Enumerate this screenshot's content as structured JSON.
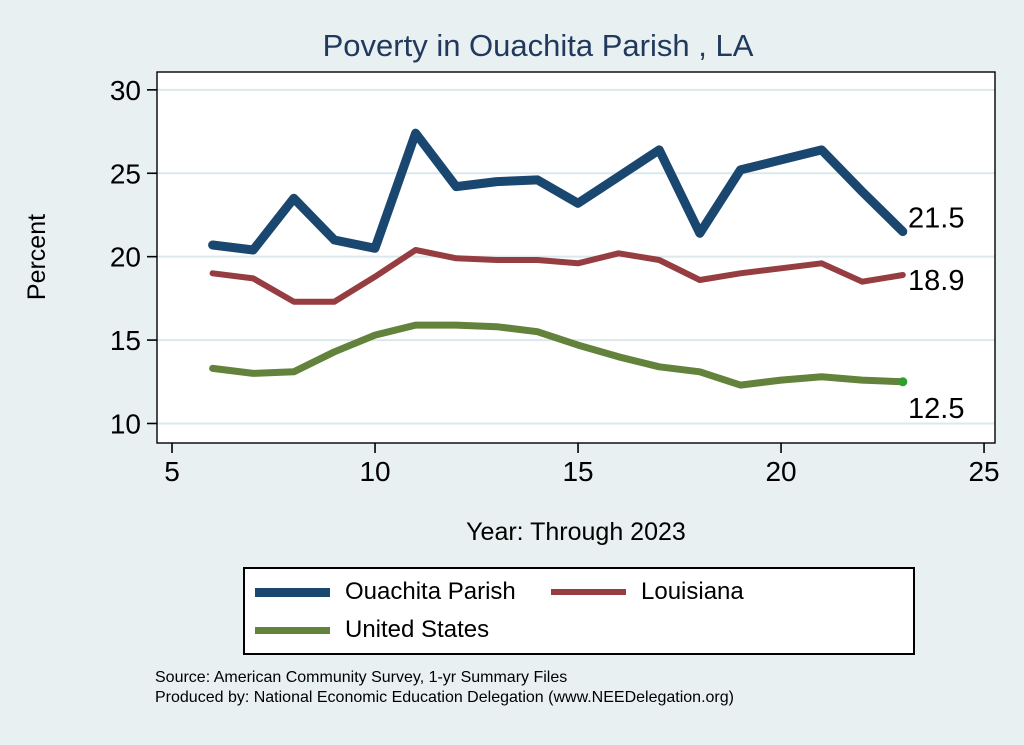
{
  "chart_data": {
    "type": "line",
    "title": "Poverty in Ouachita Parish , LA",
    "xlabel": "Year: Through 2023",
    "ylabel": "Percent",
    "x": [
      6,
      7,
      8,
      9,
      10,
      11,
      12,
      13,
      14,
      15,
      16,
      17,
      18,
      19,
      20,
      21,
      22,
      23
    ],
    "series": [
      {
        "name": "Ouachita Parish",
        "color": "#1a476f",
        "line_width": 9,
        "values": [
          20.7,
          20.4,
          23.5,
          21.0,
          20.5,
          27.4,
          24.2,
          24.5,
          24.6,
          23.2,
          24.8,
          26.4,
          21.4,
          25.2,
          25.8,
          26.4,
          23.9,
          21.5
        ],
        "end_label": "21.5",
        "end_label_dy": -4
      },
      {
        "name": "Louisiana",
        "color": "#953d41",
        "line_width": 6,
        "values": [
          19.0,
          18.7,
          17.3,
          17.3,
          18.8,
          20.4,
          19.9,
          19.8,
          19.8,
          19.6,
          20.2,
          19.8,
          18.6,
          19.0,
          19.3,
          19.6,
          18.5,
          18.9
        ],
        "end_label": "18.9",
        "end_label_dy": 15
      },
      {
        "name": "United States",
        "color": "#63823c",
        "line_width": 7,
        "values": [
          13.3,
          13.0,
          13.1,
          14.3,
          15.3,
          15.9,
          15.9,
          15.8,
          15.5,
          14.7,
          14.0,
          13.4,
          13.1,
          12.3,
          12.6,
          12.8,
          12.6,
          12.5
        ],
        "end_label": "12.5",
        "end_label_dy": 36,
        "end_marker": {
          "color": "#2e9e2e",
          "radius": 4.5
        }
      }
    ],
    "xticks": [
      5,
      10,
      15,
      20,
      25
    ],
    "yticks": [
      10,
      15,
      20,
      25,
      30
    ],
    "xlim": [
      4.63,
      25.27
    ],
    "ylim": [
      8.83,
      31.07
    ],
    "grid": "horizontal-only",
    "legend_position": "bottom"
  },
  "footer": {
    "source": "Source: American Community Survey, 1-yr Summary Files",
    "produced_by": "Produced by: National Economic Education Delegation (www.NEEDelegation.org)"
  },
  "colors": {
    "background": "#e8f0f2",
    "plot_background": "#ffffff",
    "gridline": "#dce8ec",
    "axis": "#000000",
    "tick_label": "#000000",
    "end_label": "#000000",
    "title": "#20395c"
  }
}
